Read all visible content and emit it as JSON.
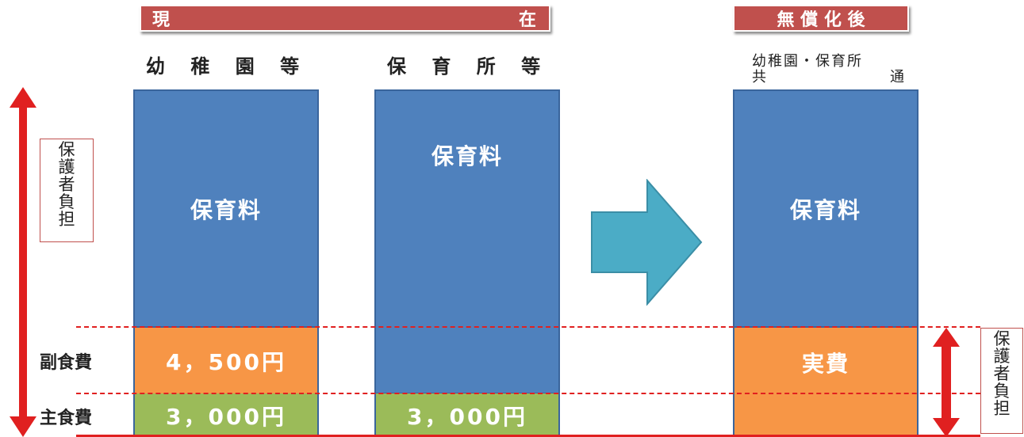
{
  "headers": {
    "current": {
      "left_char": "現",
      "right_char": "在"
    },
    "after": "無 償 化 後"
  },
  "columns": {
    "kindergarten": "幼 稚 園 等",
    "nursery": "保 育 所 等",
    "after_line1": "幼稚園・保育所",
    "after_line2_left": "共",
    "after_line2_right": "通"
  },
  "bars": {
    "fee_label": "保育料",
    "kindergarten_side_dish": "4，500円",
    "kindergarten_staple": "3，000円",
    "nursery_staple": "3，000円",
    "after_side_dish": "実費"
  },
  "row_labels": {
    "side_dish": "副食費",
    "staple": "主食費"
  },
  "burden_box": {
    "chars": [
      "保",
      "護",
      "者",
      "負",
      "担"
    ]
  },
  "colors": {
    "banner": "#c0504d",
    "fee_bar": "#4f81bd",
    "side_dish": "#f79646",
    "staple": "#9bbb59",
    "arrow": "#4bacc6",
    "burden_arrow": "#e02020"
  }
}
